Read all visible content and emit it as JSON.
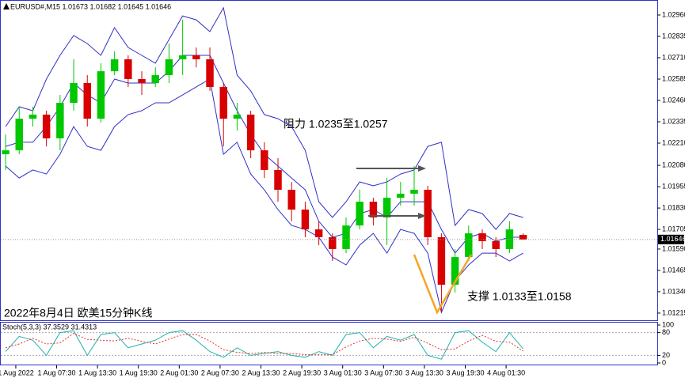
{
  "chart_data": {
    "type": "candlestick",
    "title": "EURUSD#,M15  1.01673 1.01682 1.01645 1.01646",
    "annotations": [
      "阻力 1.0235至1.0257",
      "支撑 1.0133至1.0158",
      "2022年8月4日 欧美15分钟K线"
    ],
    "up_color": "#00c800",
    "down_color": "#d80000",
    "band_color": "#3030c8",
    "ylim": [
      1.01173,
      1.03048
    ],
    "yticks": [
      {
        "value": 1.0296,
        "label": "1.02960"
      },
      {
        "value": 1.02835,
        "label": "1.02835"
      },
      {
        "value": 1.0271,
        "label": "1.02710"
      },
      {
        "value": 1.02585,
        "label": "1.02585"
      },
      {
        "value": 1.0246,
        "label": "1.02460"
      },
      {
        "value": 1.02335,
        "label": "1.02335"
      },
      {
        "value": 1.0221,
        "label": "1.02210"
      },
      {
        "value": 1.0208,
        "label": "1.02080"
      },
      {
        "value": 1.01955,
        "label": "1.01955"
      },
      {
        "value": 1.0183,
        "label": "1.01830"
      },
      {
        "value": 1.01705,
        "label": "1.01705"
      },
      {
        "value": 1.0159,
        "label": "1.01590"
      },
      {
        "value": 1.01465,
        "label": "1.01465"
      },
      {
        "value": 1.0134,
        "label": "1.01340"
      },
      {
        "value": 1.01215,
        "label": "1.01215"
      }
    ],
    "xlim": [
      -0.41,
      47.85
    ],
    "xticks": [
      {
        "value": 0.75,
        "label": "1 Aug 2022"
      },
      {
        "value": 3.75,
        "label": "1 Aug 07:30"
      },
      {
        "value": 6.75,
        "label": "1 Aug 13:30"
      },
      {
        "value": 9.75,
        "label": "1 Aug 19:30"
      },
      {
        "value": 12.75,
        "label": "2 Aug 01:30"
      },
      {
        "value": 15.75,
        "label": "2 Aug 07:30"
      },
      {
        "value": 18.75,
        "label": "2 Aug 13:30"
      },
      {
        "value": 21.75,
        "label": "2 Aug 19:30"
      },
      {
        "value": 24.75,
        "label": "3 Aug 01:30"
      },
      {
        "value": 27.75,
        "label": "3 Aug 07:30"
      },
      {
        "value": 30.75,
        "label": "3 Aug 13:30"
      },
      {
        "value": 33.75,
        "label": "3 Aug 19:30"
      },
      {
        "value": 36.75,
        "label": "4 Aug 01:30"
      }
    ],
    "last_price": 1.01646,
    "ohlc": [
      [
        1.02145,
        1.02261,
        1.02053,
        1.02168
      ],
      [
        1.02168,
        1.02423,
        1.02145,
        1.02353
      ],
      [
        1.02353,
        1.02423,
        1.02307,
        1.02377
      ],
      [
        1.02377,
        1.024,
        1.02191,
        1.02238
      ],
      [
        1.02238,
        1.02492,
        1.02168,
        1.02446
      ],
      [
        1.02446,
        1.02701,
        1.024,
        1.02562
      ],
      [
        1.02562,
        1.02608,
        1.02307,
        1.02353
      ],
      [
        1.02353,
        1.02678,
        1.0233,
        1.02631
      ],
      [
        1.02631,
        1.02747,
        1.02608,
        1.02701
      ],
      [
        1.02701,
        1.02724,
        1.02539,
        1.02585
      ],
      [
        1.02585,
        1.02631,
        1.02492,
        1.02562
      ],
      [
        1.02562,
        1.02654,
        1.02539,
        1.02608
      ],
      [
        1.02608,
        1.02793,
        1.02562,
        1.02701
      ],
      [
        1.02701,
        1.02932,
        1.02608,
        1.02724
      ],
      [
        1.02724,
        1.0277,
        1.02654,
        1.02701
      ],
      [
        1.02701,
        1.0277,
        1.02516,
        1.02539
      ],
      [
        1.02539,
        1.02562,
        1.02191,
        1.02353
      ],
      [
        1.02353,
        1.02446,
        1.02284,
        1.02377
      ],
      [
        1.02377,
        1.024,
        1.02122,
        1.02168
      ],
      [
        1.02168,
        1.02215,
        1.02006,
        1.02053
      ],
      [
        1.02053,
        1.02122,
        1.01867,
        1.01937
      ],
      [
        1.01937,
        1.01983,
        1.01752,
        1.01821
      ],
      [
        1.01821,
        1.01867,
        1.01659,
        1.01705
      ],
      [
        1.01705,
        1.01752,
        1.01613,
        1.01659
      ],
      [
        1.01659,
        1.01682,
        1.0152,
        1.0159
      ],
      [
        1.0159,
        1.01775,
        1.01566,
        1.01728
      ],
      [
        1.01728,
        1.01937,
        1.01705,
        1.01867
      ],
      [
        1.01867,
        1.0189,
        1.01728,
        1.01775
      ],
      [
        1.01775,
        1.02006,
        1.01613,
        1.0189
      ],
      [
        1.0189,
        1.01983,
        1.01844,
        1.01914
      ],
      [
        1.01914,
        1.02076,
        1.01844,
        1.01937
      ],
      [
        1.01937,
        1.0196,
        1.01613,
        1.01659
      ],
      [
        1.01659,
        1.01682,
        1.01219,
        1.01381
      ],
      [
        1.01381,
        1.0159,
        1.01335,
        1.01543
      ],
      [
        1.01543,
        1.01728,
        1.0152,
        1.01682
      ],
      [
        1.01682,
        1.01705,
        1.0159,
        1.01636
      ],
      [
        1.01636,
        1.01659,
        1.01543,
        1.0159
      ],
      [
        1.0159,
        1.01752,
        1.01566,
        1.01705
      ],
      [
        1.01673,
        1.01682,
        1.01645,
        1.01646
      ]
    ],
    "bands": {
      "upper": [
        1.02307,
        1.02423,
        1.024,
        1.02585,
        1.02724,
        1.0284,
        1.02793,
        1.02724,
        1.02886,
        1.0277,
        1.02724,
        1.02678,
        1.02816,
        1.02955,
        1.02932,
        1.02863,
        1.03002,
        1.02608,
        1.02516,
        1.02377,
        1.02353,
        1.02307,
        1.02168,
        1.01867,
        1.01775,
        1.01867,
        1.01983,
        1.0196,
        1.01983,
        1.02029,
        1.02053,
        1.02191,
        1.02215,
        1.01728,
        1.01821,
        1.01798,
        1.01705,
        1.01798,
        1.01775
      ],
      "middle": [
        1.02191,
        1.02215,
        1.02215,
        1.02307,
        1.02423,
        1.02562,
        1.02492,
        1.02446,
        1.02585,
        1.02562,
        1.02562,
        1.02562,
        1.02631,
        1.02724,
        1.02724,
        1.02724,
        1.02562,
        1.024,
        1.02261,
        1.02145,
        1.02076,
        1.02006,
        1.01937,
        1.01752,
        1.01659,
        1.01682,
        1.01798,
        1.01821,
        1.01775,
        1.01867,
        1.01867,
        1.01867,
        1.01705,
        1.01566,
        1.01659,
        1.01682,
        1.01636,
        1.01659,
        1.01659
      ],
      "lower": [
        1.02076,
        1.02006,
        1.02053,
        1.02029,
        1.02145,
        1.02307,
        1.02191,
        1.02168,
        1.02307,
        1.02377,
        1.024,
        1.02446,
        1.02446,
        1.02492,
        1.02539,
        1.02585,
        1.02145,
        1.02215,
        1.02029,
        1.01937,
        1.01821,
        1.01728,
        1.01705,
        1.01659,
        1.01543,
        1.01497,
        1.01613,
        1.01682,
        1.01566,
        1.01705,
        1.01682,
        1.01566,
        1.01219,
        1.01404,
        1.01497,
        1.01566,
        1.01566,
        1.0152,
        1.01566
      ]
    },
    "stoch": {
      "title": "Stoch(5,3,3) 37.3529 31.4313",
      "main_color": "#20b2aa",
      "signal_color": "#e03030",
      "ylim": [
        0,
        100
      ],
      "yticks": [
        100,
        80,
        20,
        0
      ],
      "main": [
        30,
        70,
        60,
        20,
        80,
        85,
        20,
        75,
        80,
        40,
        50,
        60,
        80,
        85,
        60,
        30,
        15,
        40,
        20,
        25,
        30,
        20,
        15,
        30,
        20,
        75,
        80,
        40,
        70,
        60,
        75,
        20,
        10,
        80,
        85,
        55,
        30,
        80,
        37.3529
      ],
      "signal": [
        40,
        50,
        65,
        50,
        53,
        78,
        62,
        60,
        58,
        65,
        57,
        50,
        63,
        75,
        75,
        58,
        35,
        28,
        25,
        28,
        25,
        25,
        22,
        22,
        22,
        42,
        58,
        65,
        63,
        57,
        68,
        52,
        35,
        37,
        58,
        73,
        57,
        55,
        31.4313
      ]
    }
  }
}
